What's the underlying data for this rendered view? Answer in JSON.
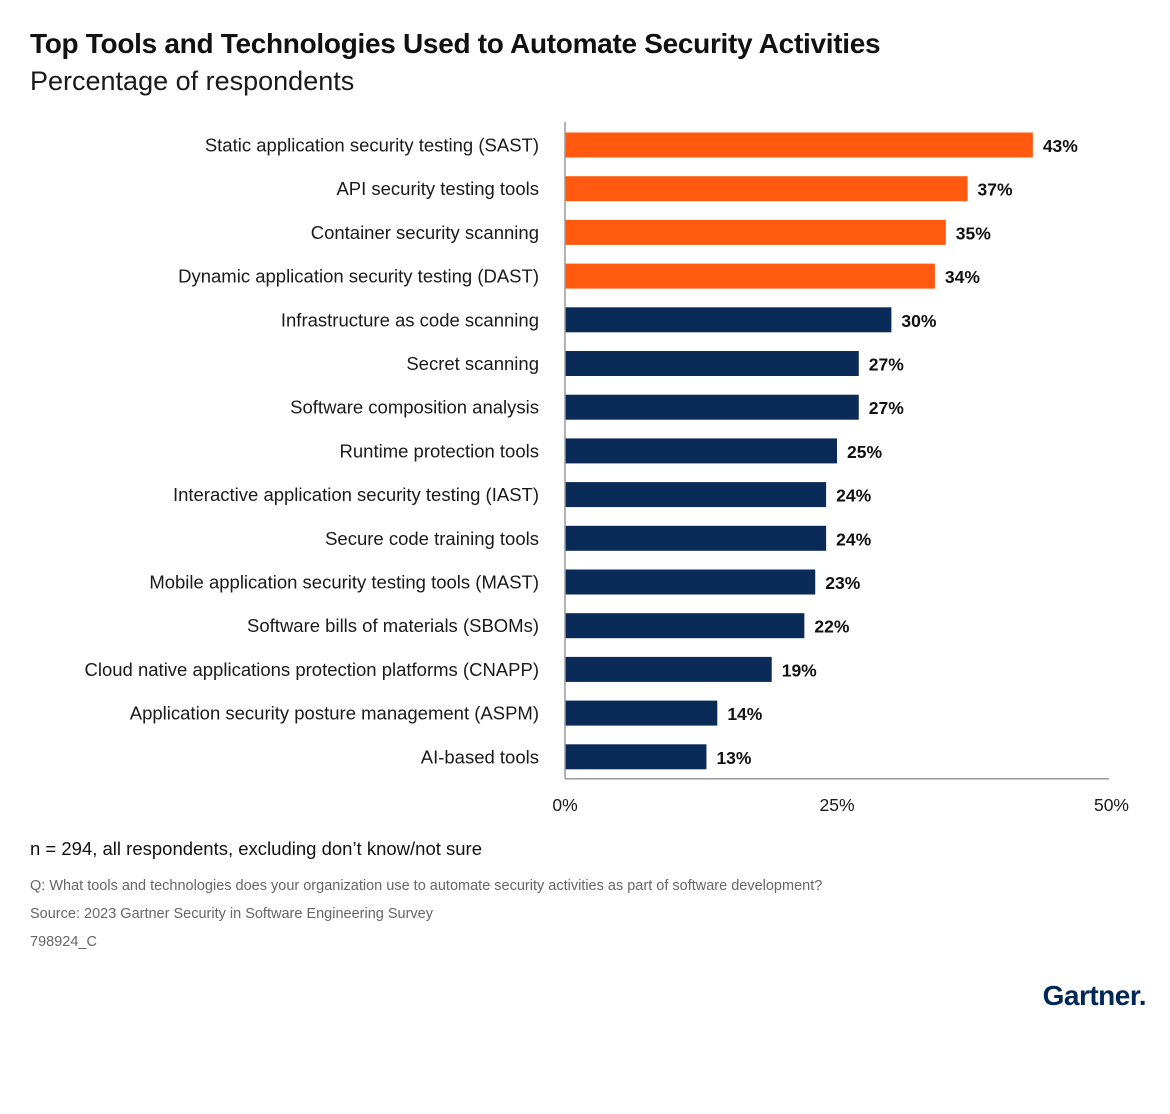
{
  "header": {
    "title": "Top Tools and Technologies Used to Automate Security Activities",
    "subtitle": "Percentage of respondents"
  },
  "chart_data": {
    "type": "bar",
    "orientation": "horizontal",
    "title": "Top Tools and Technologies Used to Automate Security Activities",
    "subtitle": "Percentage of respondents",
    "xlabel": "",
    "ylabel": "",
    "xlim": [
      0,
      50
    ],
    "xticks": [
      0,
      25,
      50
    ],
    "xtick_labels": [
      "0%",
      "25%",
      "50%"
    ],
    "grid": false,
    "colors": {
      "highlight": "#FF5A0F",
      "default": "#0A2A57"
    },
    "categories": [
      "Static application security testing (SAST)",
      "API security testing tools",
      "Container security scanning",
      "Dynamic application security testing (DAST)",
      "Infrastructure as code scanning",
      "Secret scanning",
      "Software composition analysis",
      "Runtime protection tools",
      "Interactive application security testing (IAST)",
      "Secure code training tools",
      "Mobile application security testing tools (MAST)",
      "Software bills of materials (SBOMs)",
      "Cloud native applications protection platforms (CNAPP)",
      "Application security posture management (ASPM)",
      "AI-based tools"
    ],
    "values": [
      43,
      37,
      35,
      34,
      30,
      27,
      27,
      25,
      24,
      24,
      23,
      22,
      19,
      14,
      13
    ],
    "value_labels": [
      "43%",
      "37%",
      "35%",
      "34%",
      "30%",
      "27%",
      "27%",
      "25%",
      "24%",
      "24%",
      "23%",
      "22%",
      "19%",
      "14%",
      "13%"
    ],
    "highlighted": [
      true,
      true,
      true,
      true,
      false,
      false,
      false,
      false,
      false,
      false,
      false,
      false,
      false,
      false,
      false
    ]
  },
  "footer": {
    "note": "n = 294, all respondents, excluding don’t know/not sure",
    "question": "Q: What tools and technologies does your organization use to automate security activities as part of software development?",
    "source": "Source: 2023 Gartner Security in Software Engineering Survey",
    "code": "798924_C",
    "brand": "Gartner",
    "brand_dot": "."
  }
}
